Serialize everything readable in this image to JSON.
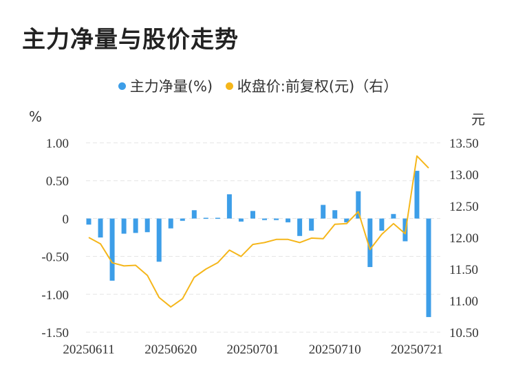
{
  "title": "主力净量与股价走势",
  "legend": {
    "net_label": "主力净量(%)",
    "price_label": "收盘价:前复权(元)（右）"
  },
  "units": {
    "left": "%",
    "right": "元"
  },
  "colors": {
    "bar": "#3d9ee8",
    "line": "#f5b61a",
    "grid": "#e3e3e3"
  },
  "chart_data": {
    "type": "bar",
    "title": "主力净量与股价走势",
    "x": [
      "20250611",
      "20250612",
      "20250613",
      "20250616",
      "20250617",
      "20250618",
      "20250619",
      "20250620",
      "20250623",
      "20250624",
      "20250625",
      "20250626",
      "20250627",
      "20250630",
      "20250701",
      "20250702",
      "20250703",
      "20250704",
      "20250707",
      "20250708",
      "20250709",
      "20250710",
      "20250711",
      "20250714",
      "20250715",
      "20250716",
      "20250717",
      "20250718",
      "20250721",
      "20250722"
    ],
    "x_tick_labels": [
      "20250611",
      "20250620",
      "20250701",
      "20250710",
      "20250721"
    ],
    "series": [
      {
        "name": "主力净量(%)",
        "axis": "left",
        "type": "bar",
        "values": [
          -0.08,
          -0.25,
          -0.82,
          -0.2,
          -0.19,
          -0.18,
          -0.57,
          -0.13,
          -0.03,
          0.11,
          0.01,
          0.01,
          0.32,
          -0.04,
          0.1,
          -0.02,
          -0.02,
          -0.05,
          -0.23,
          -0.16,
          0.18,
          0.11,
          -0.05,
          0.36,
          -0.64,
          -0.16,
          0.06,
          -0.3,
          0.63,
          -1.3
        ]
      },
      {
        "name": "收盘价:前复权(元)（右）",
        "axis": "right",
        "type": "line",
        "values": [
          12.0,
          11.9,
          11.6,
          11.55,
          11.56,
          11.4,
          11.05,
          10.9,
          11.03,
          11.37,
          11.5,
          11.6,
          11.8,
          11.7,
          11.89,
          11.92,
          11.97,
          11.97,
          11.92,
          11.99,
          11.98,
          12.21,
          12.22,
          12.41,
          11.81,
          12.05,
          12.22,
          12.06,
          13.29,
          13.1
        ]
      }
    ],
    "left_axis": {
      "ylim": [
        -1.5,
        1.0
      ],
      "ticks": [
        "1.00",
        "0.50",
        "0",
        "-0.50",
        "-1.00",
        "-1.50"
      ],
      "tick_values": [
        1.0,
        0.5,
        0,
        -0.5,
        -1.0,
        -1.5
      ]
    },
    "right_axis": {
      "ylim": [
        10.5,
        13.5
      ],
      "ticks": [
        "13.50",
        "13.00",
        "12.50",
        "12.00",
        "11.50",
        "11.00",
        "10.50"
      ],
      "tick_values": [
        13.5,
        13.0,
        12.5,
        12.0,
        11.5,
        11.0,
        10.5
      ]
    },
    "grid": true,
    "legend_position": "top-center"
  }
}
